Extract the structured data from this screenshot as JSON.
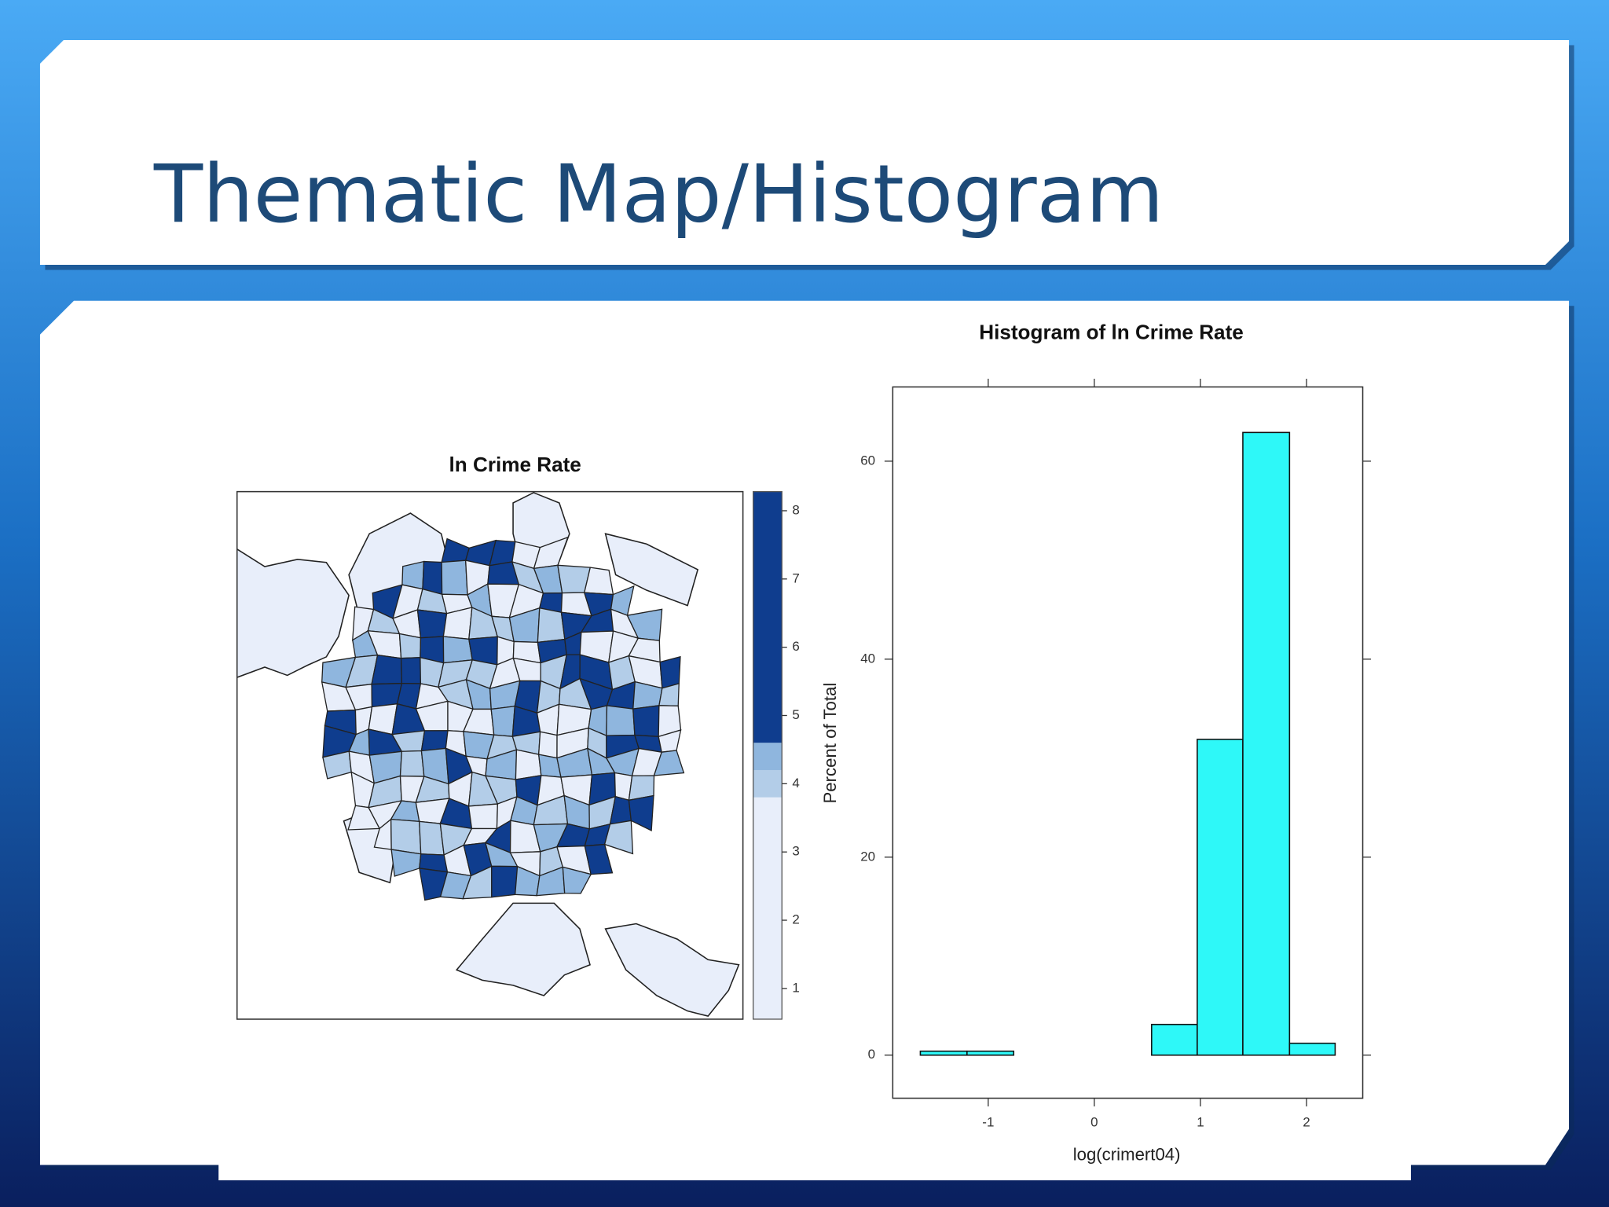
{
  "slide_title": "Thematic Map/Histogram",
  "chart_data": [
    {
      "type": "map",
      "title": "ln Crime Rate",
      "ylim": [
        0.55,
        8.28
      ],
      "yticks": [
        1,
        2,
        3,
        4,
        5,
        6,
        7,
        8
      ],
      "breaks": [
        3.8,
        4.2,
        4.6
      ],
      "colors": [
        "#e8eefa",
        "#b3cde8",
        "#8fb6de",
        "#0f3d8e"
      ]
    },
    {
      "type": "histogram",
      "title": "Histogram of ln Crime Rate",
      "x_label": "log(crimert04)",
      "y_label": "Percent of Total",
      "bins": [
        -1.64,
        -1.2,
        -0.76,
        -0.32,
        0.11,
        0.54,
        0.97,
        1.4,
        1.84,
        2.27
      ],
      "values": [
        0.4,
        0.4,
        0,
        0,
        0,
        3.1,
        31.9,
        62.9,
        1.2
      ],
      "color": "#2ef8f8",
      "xlim": [
        -1.9,
        2.53
      ],
      "ylim": [
        -4.35,
        67.5
      ],
      "xticks": [
        -1,
        0,
        1,
        2
      ],
      "yticks": [
        0,
        20,
        40,
        60
      ]
    }
  ]
}
